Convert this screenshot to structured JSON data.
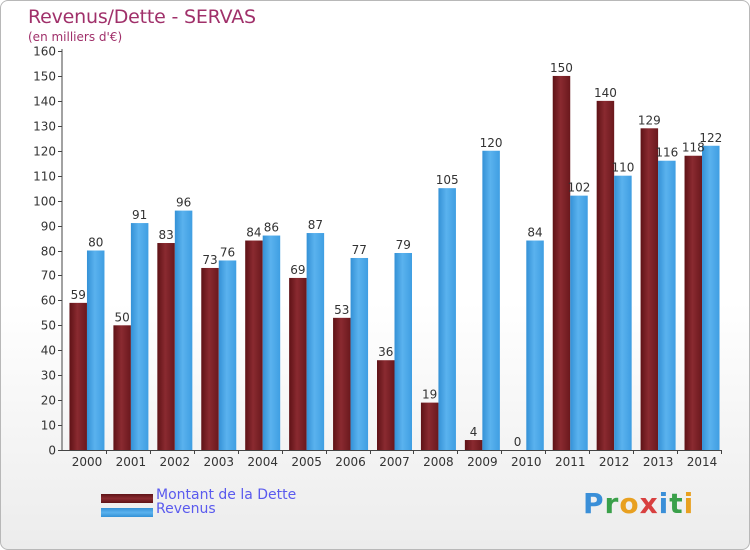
{
  "chart_data": {
    "type": "bar",
    "title": "Revenus/Dette - SERVAS",
    "subtitle": "(en milliers d'€)",
    "categories": [
      "2000",
      "2001",
      "2002",
      "2003",
      "2004",
      "2005",
      "2006",
      "2007",
      "2008",
      "2009",
      "2010",
      "2011",
      "2012",
      "2013",
      "2014"
    ],
    "series": [
      {
        "name": "Montant de la Dette",
        "color": "#7a1f24",
        "values": [
          59,
          50,
          83,
          73,
          84,
          69,
          53,
          36,
          19,
          4,
          0,
          150,
          140,
          129,
          118
        ]
      },
      {
        "name": "Revenus",
        "color": "#3f9fe0",
        "values": [
          80,
          91,
          96,
          76,
          86,
          87,
          77,
          79,
          105,
          120,
          84,
          102,
          110,
          116,
          122
        ]
      }
    ],
    "ylim": [
      0,
      160
    ],
    "yticks": [
      0,
      10,
      20,
      30,
      40,
      50,
      60,
      70,
      80,
      90,
      100,
      110,
      120,
      130,
      140,
      150,
      160
    ],
    "grid": false,
    "legend_position": "bottom-left"
  },
  "logo": {
    "text": "Proxiti",
    "letter_colors": [
      "#3a8fd8",
      "#3aa04a",
      "#e8a020",
      "#d84040",
      "#3a8fd8",
      "#3aa04a",
      "#e8a020"
    ]
  }
}
